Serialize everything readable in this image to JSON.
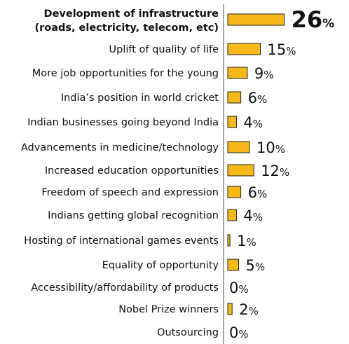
{
  "chart_data": {
    "type": "bar",
    "orientation": "horizontal",
    "categories": [
      [
        "Development of infrastructure",
        "(roads, electricity, telecom, etc)"
      ],
      [
        "Uplift of quality of life"
      ],
      [
        "More job opportunities for the young"
      ],
      [
        "India’s position in world cricket"
      ],
      [
        "Indian businesses going beyond India"
      ],
      [
        "Advancements in medicine/technology"
      ],
      [
        "Increased education opportunities"
      ],
      [
        "Freedom of speech and expression"
      ],
      [
        "Indians getting global recognition"
      ],
      [
        "Hosting of international games events"
      ],
      [
        "Equality of opportunity"
      ],
      [
        "Accessibility/affordability of products"
      ],
      [
        "Nobel Prize winners"
      ],
      [
        "Outsourcing"
      ]
    ],
    "values": [
      26,
      15,
      9,
      6,
      4,
      10,
      12,
      6,
      4,
      1,
      5,
      0,
      2,
      0
    ],
    "value_labels": [
      "26",
      "15",
      "9",
      "6",
      "4",
      "10",
      "12",
      "6",
      "4",
      "1",
      "5",
      "0",
      "2",
      "0"
    ],
    "unit": "%",
    "highlight_index": 0,
    "bar_color": "#f6b919",
    "bar_stroke": "#222222",
    "grid": false,
    "legend": "none"
  }
}
